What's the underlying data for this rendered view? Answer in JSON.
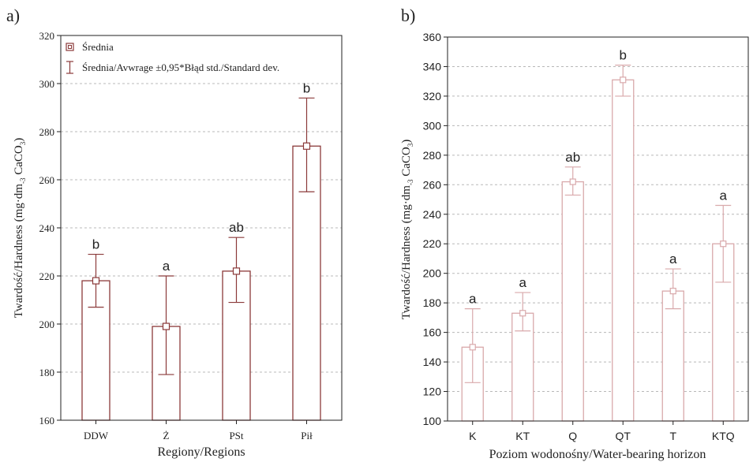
{
  "colors": {
    "panel_a": "#8b3a3a",
    "panel_b": "#d9a9ab",
    "grid": "#b8b8b8",
    "text": "#222222"
  },
  "panel_labels": {
    "a": "a)",
    "b": "b)"
  },
  "legend": {
    "mean": "Średnia",
    "error": "Średnia/Avwrage ±0,95*Błąd std./Standard dev."
  },
  "chart_data": [
    {
      "type": "bar",
      "panel": "a)",
      "categories": [
        "DDW",
        "Ż",
        "PSt",
        "Pił"
      ],
      "values": [
        218,
        199,
        222,
        274
      ],
      "error_low": [
        207,
        179,
        209,
        255
      ],
      "error_high": [
        229,
        220,
        236,
        294
      ],
      "letters": [
        "b",
        "a",
        "ab",
        "b"
      ],
      "xlabel": "Regiony/Regions",
      "ylabel": "Twardość/Hardness (mg·dm-3 CaCO3)",
      "ylim": [
        160,
        320
      ],
      "yticks": [
        160,
        180,
        200,
        220,
        240,
        260,
        280,
        300,
        320
      ],
      "grid": true,
      "legend_position": "top-left"
    },
    {
      "type": "bar",
      "panel": "b)",
      "categories": [
        "K",
        "KT",
        "Q",
        "QT",
        "T",
        "KTQ"
      ],
      "values": [
        150,
        173,
        262,
        331,
        188,
        220
      ],
      "error_low": [
        126,
        161,
        253,
        320,
        176,
        194
      ],
      "error_high": [
        176,
        187,
        272,
        341,
        203,
        246
      ],
      "letters": [
        "a",
        "a",
        "ab",
        "b",
        "a",
        "a"
      ],
      "xlabel": "Poziom wodonośny/Water-bearing horizon",
      "ylabel": "Twardość/Hardness (mg·dm-3 CaCO3)",
      "ylim": [
        100,
        360
      ],
      "yticks": [
        100,
        120,
        140,
        160,
        180,
        200,
        220,
        240,
        260,
        280,
        300,
        320,
        340,
        360
      ],
      "grid": true
    }
  ]
}
